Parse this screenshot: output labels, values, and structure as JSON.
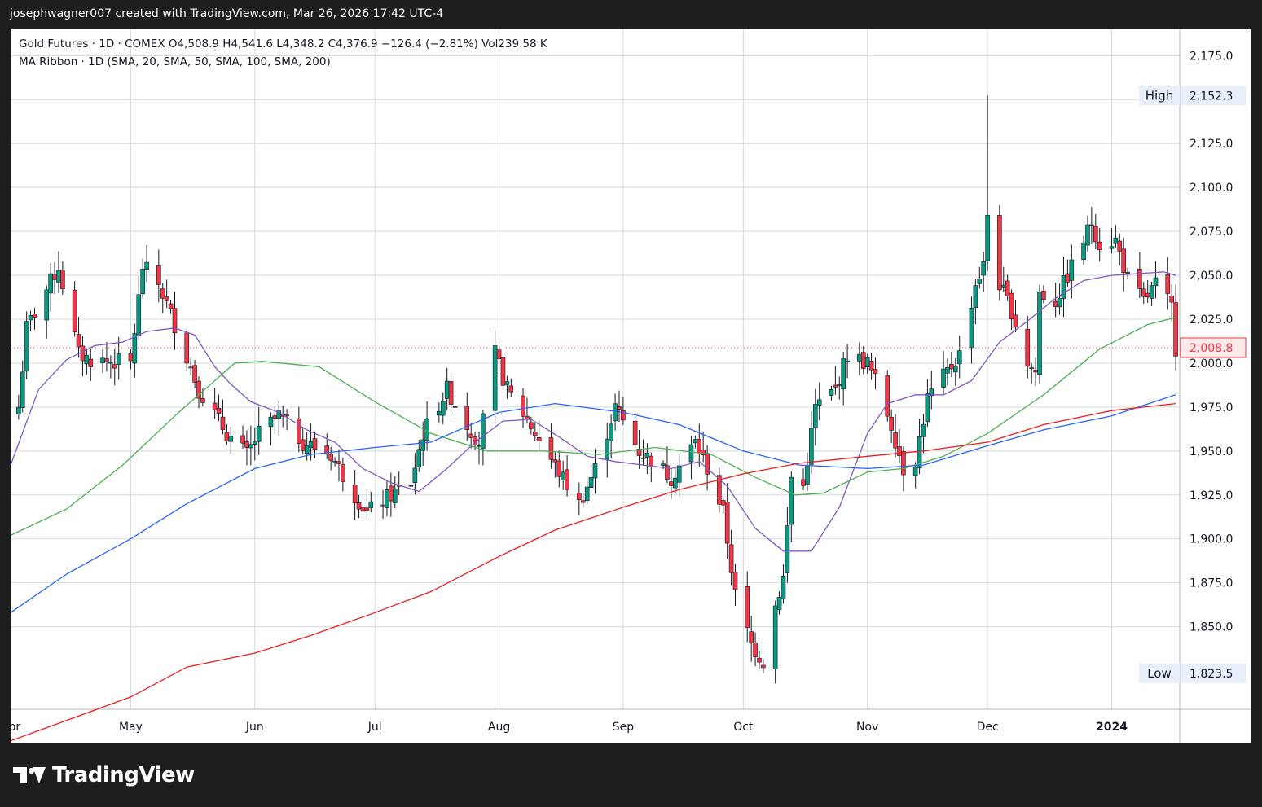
{
  "header": {
    "credit": "josephwagner007 created with TradingView.com, Mar 26, 2026 17:42 UTC-4"
  },
  "legend": {
    "line1": "Gold Futures · 1D · COMEX  O4,508.9  H4,541.6  L4,348.2  C4,376.9  −126.4 (−2.81%)  Vol239.58 K",
    "line2": "MA Ribbon · 1D (SMA, 20, SMA, 50, SMA, 100, SMA, 200)"
  },
  "footer": {
    "brand": "TradingView"
  },
  "colors": {
    "up": "#089981",
    "down": "#f23645",
    "sma20": "#7e57c2",
    "sma50": "#4caf50",
    "sma100": "#2962ff",
    "sma200": "#e91e1e"
  },
  "chart_data": {
    "type": "candlestick",
    "title": "Gold Futures · 1D · COMEX",
    "y_axis": {
      "position": "right",
      "ticks": [
        "2,175.0",
        "2,150.0",
        "2,125.0",
        "2,100.0",
        "2,075.0",
        "2,050.0",
        "2,025.0",
        "2,000.0",
        "1,975.0",
        "1,950.0",
        "1,925.0",
        "1,900.0",
        "1,875.0",
        "1,850.0"
      ],
      "range": [
        1803,
        2190
      ]
    },
    "x_axis": {
      "labels": [
        "Apr",
        "May",
        "Jun",
        "Jul",
        "Aug",
        "Sep",
        "Oct",
        "Nov",
        "Dec",
        "2024"
      ],
      "range": [
        "2023-04-01",
        "2024-01-18"
      ]
    },
    "grid": true,
    "price_markers": [
      {
        "label": "High",
        "value_text": "2,152.3",
        "value": 2152.3
      },
      {
        "label": "Low",
        "value_text": "1,823.5",
        "value": 1823.5
      },
      {
        "label": "",
        "value_text": "2,008.8",
        "value": 2008.8
      }
    ],
    "anchors": [
      [
        "2023-04-03",
        1975
      ],
      [
        "2023-04-05",
        2020
      ],
      [
        "2023-04-13",
        2055
      ],
      [
        "2023-04-18",
        2005
      ],
      [
        "2023-04-21",
        2002
      ],
      [
        "2023-05-01",
        2000
      ],
      [
        "2023-05-04",
        2055
      ],
      [
        "2023-05-08",
        2045
      ],
      [
        "2023-05-12",
        2022
      ],
      [
        "2023-05-18",
        1985
      ],
      [
        "2023-05-25",
        1960
      ],
      [
        "2023-05-30",
        1948
      ],
      [
        "2023-06-02",
        1960
      ],
      [
        "2023-06-07",
        1970
      ],
      [
        "2023-06-13",
        1955
      ],
      [
        "2023-06-20",
        1948
      ],
      [
        "2023-06-26",
        1925
      ],
      [
        "2023-06-29",
        1915
      ],
      [
        "2023-07-05",
        1925
      ],
      [
        "2023-07-10",
        1932
      ],
      [
        "2023-07-13",
        1960
      ],
      [
        "2023-07-19",
        1985
      ],
      [
        "2023-07-24",
        1965
      ],
      [
        "2023-07-27",
        1955
      ],
      [
        "2023-07-31",
        2005
      ],
      [
        "2023-08-03",
        1985
      ],
      [
        "2023-08-08",
        1968
      ],
      [
        "2023-08-14",
        1945
      ],
      [
        "2023-08-21",
        1920
      ],
      [
        "2023-08-25",
        1940
      ],
      [
        "2023-08-30",
        1975
      ],
      [
        "2023-09-05",
        1950
      ],
      [
        "2023-09-08",
        1945
      ],
      [
        "2023-09-13",
        1935
      ],
      [
        "2023-09-19",
        1955
      ],
      [
        "2023-09-22",
        1940
      ],
      [
        "2023-09-26",
        1915
      ],
      [
        "2023-09-29",
        1868
      ],
      [
        "2023-10-03",
        1840
      ],
      [
        "2023-10-06",
        1830
      ],
      [
        "2023-10-09",
        1862
      ],
      [
        "2023-10-11",
        1878
      ],
      [
        "2023-10-13",
        1935
      ],
      [
        "2023-10-16",
        1930
      ],
      [
        "2023-10-19",
        1975
      ],
      [
        "2023-10-24",
        1985
      ],
      [
        "2023-10-27",
        2005
      ],
      [
        "2023-11-01",
        2000
      ],
      [
        "2023-11-03",
        1990
      ],
      [
        "2023-11-07",
        1965
      ],
      [
        "2023-11-10",
        1940
      ],
      [
        "2023-11-13",
        1945
      ],
      [
        "2023-11-16",
        1980
      ],
      [
        "2023-11-21",
        1995
      ],
      [
        "2023-11-24",
        2005
      ],
      [
        "2023-11-28",
        2045
      ],
      [
        "2023-11-30",
        2055
      ],
      [
        "2023-12-01",
        2085
      ],
      [
        "2023-12-04",
        2045
      ],
      [
        "2023-12-07",
        2030
      ],
      [
        "2023-12-11",
        2000
      ],
      [
        "2023-12-13",
        1995
      ],
      [
        "2023-12-14",
        2040
      ],
      [
        "2023-12-18",
        2035
      ],
      [
        "2023-12-21",
        2050
      ],
      [
        "2023-12-27",
        2080
      ],
      [
        "2023-12-29",
        2068
      ],
      [
        "2024-01-02",
        2070
      ],
      [
        "2024-01-05",
        2048
      ],
      [
        "2024-01-09",
        2035
      ],
      [
        "2024-01-12",
        2045
      ],
      [
        "2024-01-16",
        2032
      ],
      [
        "2024-01-17",
        2008.8
      ]
    ],
    "series": [
      {
        "name": "SMA 20",
        "color": "#7e57c2",
        "values": [
          [
            "2023-04-01",
            1942
          ],
          [
            "2023-04-08",
            1985
          ],
          [
            "2023-04-15",
            2002
          ],
          [
            "2023-04-22",
            2010
          ],
          [
            "2023-04-29",
            2012
          ],
          [
            "2023-05-05",
            2018
          ],
          [
            "2023-05-12",
            2020
          ],
          [
            "2023-05-17",
            2016
          ],
          [
            "2023-05-22",
            1998
          ],
          [
            "2023-05-26",
            1988
          ],
          [
            "2023-05-31",
            1978
          ],
          [
            "2023-06-07",
            1972
          ],
          [
            "2023-06-14",
            1962
          ],
          [
            "2023-06-21",
            1955
          ],
          [
            "2023-06-28",
            1940
          ],
          [
            "2023-07-05",
            1932
          ],
          [
            "2023-07-12",
            1927
          ],
          [
            "2023-07-19",
            1940
          ],
          [
            "2023-07-26",
            1955
          ],
          [
            "2023-08-02",
            1967
          ],
          [
            "2023-08-09",
            1968
          ],
          [
            "2023-08-16",
            1958
          ],
          [
            "2023-08-23",
            1947
          ],
          [
            "2023-08-30",
            1944
          ],
          [
            "2023-09-06",
            1942
          ],
          [
            "2023-09-13",
            1940
          ],
          [
            "2023-09-20",
            1944
          ],
          [
            "2023-09-27",
            1930
          ],
          [
            "2023-10-04",
            1906
          ],
          [
            "2023-10-11",
            1893
          ],
          [
            "2023-10-18",
            1893
          ],
          [
            "2023-10-25",
            1918
          ],
          [
            "2023-11-01",
            1960
          ],
          [
            "2023-11-06",
            1977
          ],
          [
            "2023-11-13",
            1982
          ],
          [
            "2023-11-20",
            1982
          ],
          [
            "2023-11-27",
            1990
          ],
          [
            "2023-12-04",
            2012
          ],
          [
            "2023-12-11",
            2024
          ],
          [
            "2023-12-18",
            2037
          ],
          [
            "2023-12-25",
            2047
          ],
          [
            "2024-01-01",
            2050
          ],
          [
            "2024-01-08",
            2051
          ],
          [
            "2024-01-14",
            2052
          ],
          [
            "2024-01-17",
            2050
          ]
        ]
      },
      {
        "name": "SMA 50",
        "color": "#4caf50",
        "values": [
          [
            "2023-04-01",
            1902
          ],
          [
            "2023-04-15",
            1917
          ],
          [
            "2023-04-29",
            1942
          ],
          [
            "2023-05-13",
            1972
          ],
          [
            "2023-05-27",
            2000
          ],
          [
            "2023-06-03",
            2001
          ],
          [
            "2023-06-17",
            1998
          ],
          [
            "2023-07-01",
            1978
          ],
          [
            "2023-07-15",
            1960
          ],
          [
            "2023-07-29",
            1950
          ],
          [
            "2023-08-12",
            1950
          ],
          [
            "2023-08-26",
            1948
          ],
          [
            "2023-09-09",
            1952
          ],
          [
            "2023-09-23",
            1948
          ],
          [
            "2023-10-04",
            1935
          ],
          [
            "2023-10-14",
            1925
          ],
          [
            "2023-10-21",
            1926
          ],
          [
            "2023-11-01",
            1938
          ],
          [
            "2023-11-10",
            1940
          ],
          [
            "2023-11-20",
            1947
          ],
          [
            "2023-12-01",
            1960
          ],
          [
            "2023-12-15",
            1982
          ],
          [
            "2023-12-29",
            2008
          ],
          [
            "2024-01-10",
            2022
          ],
          [
            "2024-01-17",
            2026
          ]
        ]
      },
      {
        "name": "SMA 100",
        "color": "#2962ff",
        "values": [
          [
            "2023-04-01",
            1858
          ],
          [
            "2023-04-15",
            1880
          ],
          [
            "2023-05-01",
            1900
          ],
          [
            "2023-05-15",
            1920
          ],
          [
            "2023-06-01",
            1940
          ],
          [
            "2023-06-15",
            1948
          ],
          [
            "2023-07-01",
            1952
          ],
          [
            "2023-07-15",
            1955
          ],
          [
            "2023-08-01",
            1972
          ],
          [
            "2023-08-15",
            1977
          ],
          [
            "2023-09-01",
            1972
          ],
          [
            "2023-09-15",
            1965
          ],
          [
            "2023-10-01",
            1950
          ],
          [
            "2023-10-15",
            1942
          ],
          [
            "2023-11-01",
            1940
          ],
          [
            "2023-11-15",
            1942
          ],
          [
            "2023-12-01",
            1953
          ],
          [
            "2023-12-15",
            1962
          ],
          [
            "2024-01-01",
            1970
          ],
          [
            "2024-01-17",
            1982
          ]
        ]
      },
      {
        "name": "SMA 200",
        "color": "#e91e1e",
        "values": [
          [
            "2023-04-01",
            1785
          ],
          [
            "2023-05-01",
            1810
          ],
          [
            "2023-05-15",
            1827
          ],
          [
            "2023-06-01",
            1835
          ],
          [
            "2023-06-15",
            1845
          ],
          [
            "2023-07-01",
            1858
          ],
          [
            "2023-07-15",
            1870
          ],
          [
            "2023-08-01",
            1890
          ],
          [
            "2023-08-15",
            1905
          ],
          [
            "2023-09-01",
            1918
          ],
          [
            "2023-09-15",
            1928
          ],
          [
            "2023-10-01",
            1937
          ],
          [
            "2023-10-15",
            1943
          ],
          [
            "2023-11-01",
            1947
          ],
          [
            "2023-11-15",
            1950
          ],
          [
            "2023-12-01",
            1955
          ],
          [
            "2023-12-15",
            1965
          ],
          [
            "2024-01-01",
            1973
          ],
          [
            "2024-01-17",
            1977
          ]
        ]
      }
    ],
    "extremes": {
      "high": [
        "2023-12-01",
        2152.3
      ],
      "low": [
        "2023-10-06",
        1823.5
      ]
    }
  }
}
